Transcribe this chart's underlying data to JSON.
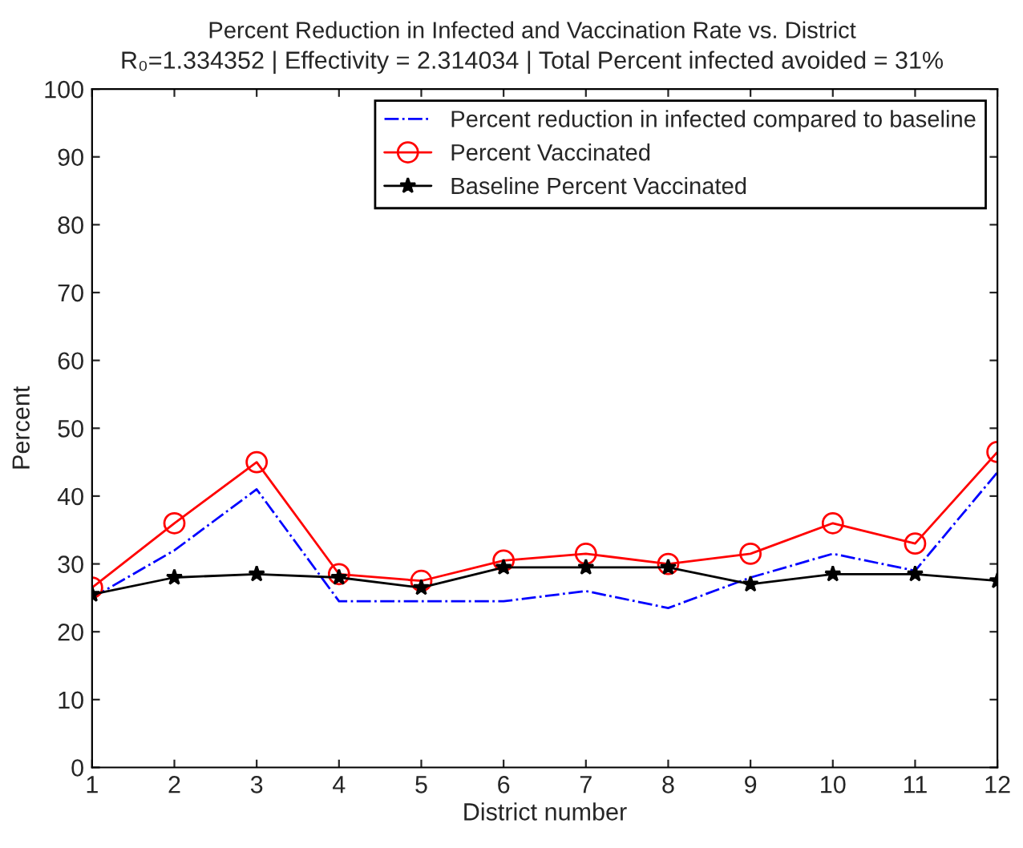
{
  "chart_data": {
    "type": "line",
    "title": "Percent Reduction in Infected and Vaccination Rate vs. District",
    "subtitle": "R₀=1.334352 | Effectivity = 2.314034 | Total Percent infected avoided = 31%",
    "xlabel": "District number",
    "ylabel": "Percent",
    "x": [
      1,
      2,
      3,
      4,
      5,
      6,
      7,
      8,
      9,
      10,
      11,
      12
    ],
    "series": [
      {
        "name": "Percent reduction in infected compared to baseline",
        "color": "#0000ff",
        "line_style": "dashdot",
        "marker": "none",
        "values": [
          25,
          32,
          41,
          24.5,
          24.5,
          24.5,
          26,
          23.5,
          28,
          31.5,
          29,
          43.5
        ]
      },
      {
        "name": "Percent Vaccinated",
        "color": "#ff0000",
        "line_style": "solid",
        "marker": "circle",
        "values": [
          26.5,
          36,
          45,
          28.5,
          27.5,
          30.5,
          31.5,
          30,
          31.5,
          36,
          33,
          46.5
        ]
      },
      {
        "name": "Baseline Percent Vaccinated",
        "color": "#000000",
        "line_style": "solid",
        "marker": "star",
        "values": [
          25.5,
          28,
          28.5,
          28,
          26.5,
          29.5,
          29.5,
          29.5,
          27,
          28.5,
          28.5,
          27.5
        ]
      }
    ],
    "xlim": [
      1,
      12
    ],
    "xticks": [
      1,
      2,
      3,
      4,
      5,
      6,
      7,
      8,
      9,
      10,
      11,
      12
    ],
    "ylim": [
      0,
      100
    ],
    "yticks": [
      0,
      10,
      20,
      30,
      40,
      50,
      60,
      70,
      80,
      90,
      100
    ],
    "legend": "top right",
    "grid": false
  }
}
